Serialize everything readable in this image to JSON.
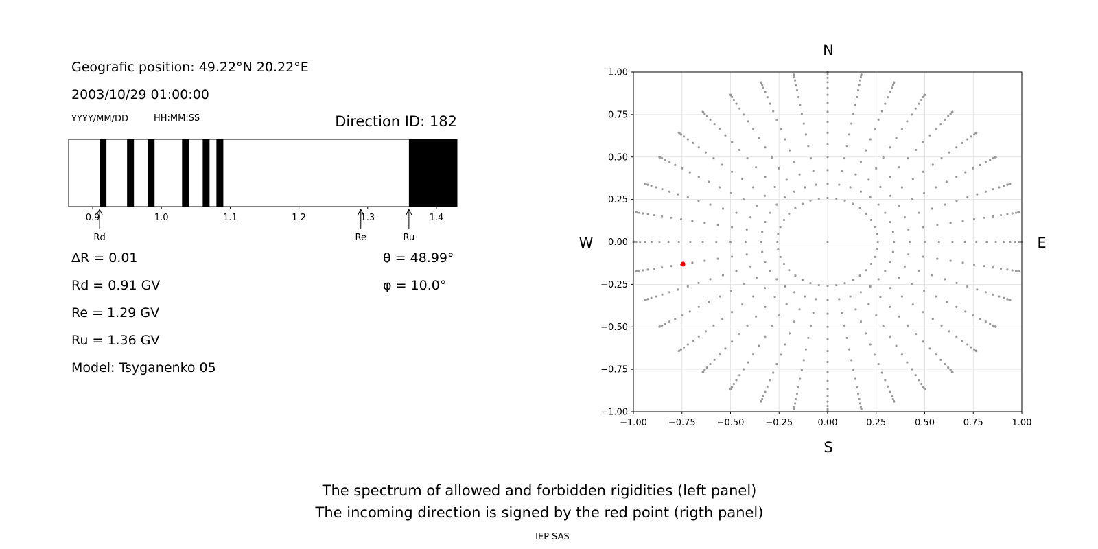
{
  "left_panel": {
    "position_line": "Geografic position: 49.22°N 20.22°E",
    "datetime": "2003/10/29 01:00:00",
    "date_format": "YYYY/MM/DD",
    "time_format": "HH:MM:SS",
    "direction_id": "Direction ID: 182",
    "delta_r": "ΔR = 0.01",
    "rd": "Rd = 0.91 GV",
    "re": "Re = 1.29 GV",
    "ru": "Ru = 1.36 GV",
    "model": "Model: Tsyganenko 05",
    "theta": "θ = 48.99°",
    "phi": "φ = 10.0°"
  },
  "right_panel": {
    "north": "N",
    "south": "S",
    "west": "W",
    "east": "E"
  },
  "caption": {
    "line1": "The spectrum of allowed and forbidden rigidities (left panel)",
    "line2": "The incoming direction is signed by the red point (rigth panel)",
    "credit": "IEP SAS"
  },
  "chart_data": [
    {
      "type": "bar",
      "name": "rigidity-spectrum",
      "xlim": [
        0.865,
        1.43
      ],
      "ticks": [
        0.9,
        1.0,
        1.1,
        1.2,
        1.3,
        1.4
      ],
      "tick_labels": [
        "0.9",
        "1.0",
        "1.1",
        "1.2",
        "1.3",
        "1.4"
      ],
      "forbidden_bands": [
        [
          0.91,
          0.92
        ],
        [
          0.95,
          0.96
        ],
        [
          0.98,
          0.99
        ],
        [
          1.03,
          1.04
        ],
        [
          1.06,
          1.07
        ],
        [
          1.08,
          1.09
        ],
        [
          1.36,
          1.43
        ]
      ],
      "markers": [
        {
          "label": "Rd",
          "value": 0.91
        },
        {
          "label": "Re",
          "value": 1.29
        },
        {
          "label": "Ru",
          "value": 1.36
        }
      ],
      "colors": {
        "forbidden": "#000000",
        "allowed": "#ffffff"
      }
    },
    {
      "type": "scatter",
      "name": "direction-grid",
      "xlim": [
        -1,
        1
      ],
      "ylim": [
        -1,
        1
      ],
      "ticks": [
        -1.0,
        -0.75,
        -0.5,
        -0.25,
        0.0,
        0.25,
        0.5,
        0.75,
        1.0
      ],
      "tick_labels": [
        "−1.00",
        "−0.75",
        "−0.50",
        "−0.25",
        "0.00",
        "0.25",
        "0.50",
        "0.75",
        "1.00"
      ],
      "grid": true,
      "zenith_step_deg": 5,
      "zenith_max_deg": 90,
      "azimuth_step_deg": 10,
      "azimuth_min_zenith_deg": 15,
      "azimuth_denser_zenith_deg": 55,
      "azimuth_dense_step_deg": 5,
      "highlight": {
        "x": -0.745,
        "y": -0.131
      },
      "colors": {
        "points": "#999999",
        "highlight": "#ff0000"
      }
    }
  ]
}
